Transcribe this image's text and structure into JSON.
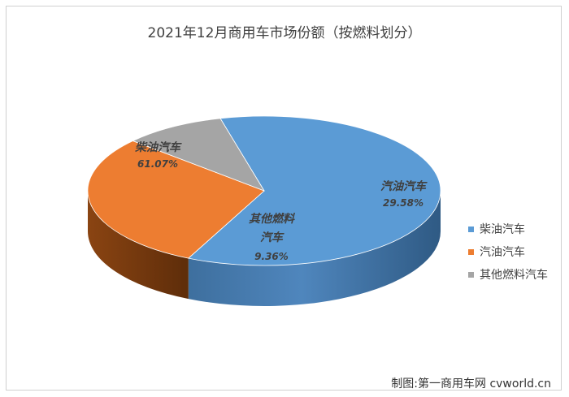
{
  "colors": {
    "diesel": "#5b9bd5",
    "gasoline": "#ed7d31",
    "other": "#a5a5a5"
  },
  "chart_data": {
    "type": "pie",
    "title": "2021年12月商用车市场份额（按燃料划分）",
    "slices": [
      {
        "label": "柴油汽车",
        "value": 61.07,
        "value_label": "61.07%",
        "color": "#5b9bd5"
      },
      {
        "label": "汽油汽车",
        "value": 29.58,
        "value_label": "29.58%",
        "color": "#ed7d31"
      },
      {
        "label": "其他燃料汽车",
        "value": 9.36,
        "value_label": "9.36%",
        "color": "#a5a5a5"
      }
    ],
    "legend_position": "right"
  },
  "legend": {
    "items": [
      {
        "label": "柴油汽车",
        "color": "#5b9bd5"
      },
      {
        "label": "汽油汽车",
        "color": "#ed7d31"
      },
      {
        "label": "其他燃料汽车",
        "color": "#a5a5a5"
      }
    ]
  },
  "credit": "制图:第一商用车网 cvworld.cn"
}
